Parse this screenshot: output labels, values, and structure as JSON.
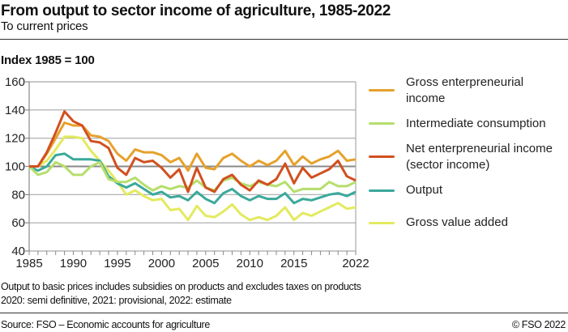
{
  "title": "From output to sector income of agriculture, 1985-2022",
  "subtitle": "To current prices",
  "notes": [
    "Output to basic prices includes subsidies on products and excludes taxes on products",
    "2020: semi definitive, 2021: provisional, 2022: estimate"
  ],
  "source": "Source: FSO – Economic accounts for agriculture",
  "copyright": "© FSO 2022",
  "chart_data": {
    "type": "line",
    "title": "From output to sector income of agriculture, 1985-2022",
    "ylabel": "Index 1985 = 100",
    "xlabel": "",
    "xlim": [
      1985,
      2022
    ],
    "ylim": [
      40,
      160
    ],
    "yticks": [
      40,
      60,
      80,
      100,
      120,
      140,
      160
    ],
    "xticks": [
      1985,
      1990,
      1995,
      2000,
      2005,
      2010,
      2015,
      2022
    ],
    "xtick_labels": [
      "1985",
      "1990",
      "1995",
      "2000",
      "2005",
      "2010",
      "2015",
      "2022"
    ],
    "grid": true,
    "legend_placement": "right",
    "x": [
      1985,
      1986,
      1987,
      1988,
      1989,
      1990,
      1991,
      1992,
      1993,
      1994,
      1995,
      1996,
      1997,
      1998,
      1999,
      2000,
      2001,
      2002,
      2003,
      2004,
      2005,
      2006,
      2007,
      2008,
      2009,
      2010,
      2011,
      2012,
      2013,
      2014,
      2015,
      2016,
      2017,
      2018,
      2019,
      2020,
      2021,
      2022
    ],
    "series": [
      {
        "name": "Gross enterpreneurial income",
        "color": "#e6a12b",
        "values": [
          100,
          100,
          109,
          120,
          131,
          129,
          129,
          122,
          121,
          118,
          109,
          104,
          112,
          110,
          110,
          108,
          103,
          106,
          97,
          109,
          99,
          98,
          106,
          109,
          104,
          100,
          104,
          101,
          104,
          111,
          101,
          107,
          102,
          105,
          107,
          111,
          104,
          105
        ]
      },
      {
        "name": "Intermediate consumption",
        "color": "#b6de6c",
        "values": [
          100,
          94,
          96,
          103,
          100,
          94,
          94,
          100,
          103,
          91,
          89,
          89,
          92,
          87,
          83,
          86,
          84,
          86,
          85,
          90,
          85,
          83,
          90,
          92,
          88,
          86,
          89,
          87,
          86,
          89,
          82,
          84,
          84,
          84,
          89,
          86,
          86,
          89
        ]
      },
      {
        "name": "Net enterpreneurial income (sector income)",
        "color": "#d1501f",
        "values": [
          100,
          100,
          110,
          124,
          139,
          132,
          129,
          118,
          117,
          113,
          99,
          94,
          106,
          103,
          104,
          99,
          92,
          98,
          82,
          99,
          85,
          82,
          91,
          94,
          87,
          83,
          90,
          87,
          91,
          102,
          88,
          99,
          92,
          95,
          98,
          104,
          93,
          90
        ]
      },
      {
        "name": "Output",
        "color": "#3ba99b",
        "values": [
          100,
          97,
          100,
          108,
          109,
          105,
          105,
          105,
          104,
          93,
          88,
          85,
          88,
          84,
          80,
          82,
          78,
          79,
          76,
          82,
          77,
          74,
          81,
          84,
          79,
          76,
          79,
          77,
          77,
          81,
          74,
          77,
          76,
          78,
          80,
          81,
          79,
          82
        ]
      },
      {
        "name": "Gross value added",
        "color": "#e3ea5e",
        "values": [
          100,
          100,
          104,
          112,
          121,
          121,
          120,
          111,
          104,
          97,
          89,
          80,
          83,
          79,
          76,
          77,
          69,
          70,
          62,
          72,
          65,
          64,
          68,
          73,
          66,
          62,
          64,
          62,
          65,
          71,
          62,
          67,
          65,
          68,
          71,
          74,
          70,
          71
        ]
      }
    ]
  }
}
